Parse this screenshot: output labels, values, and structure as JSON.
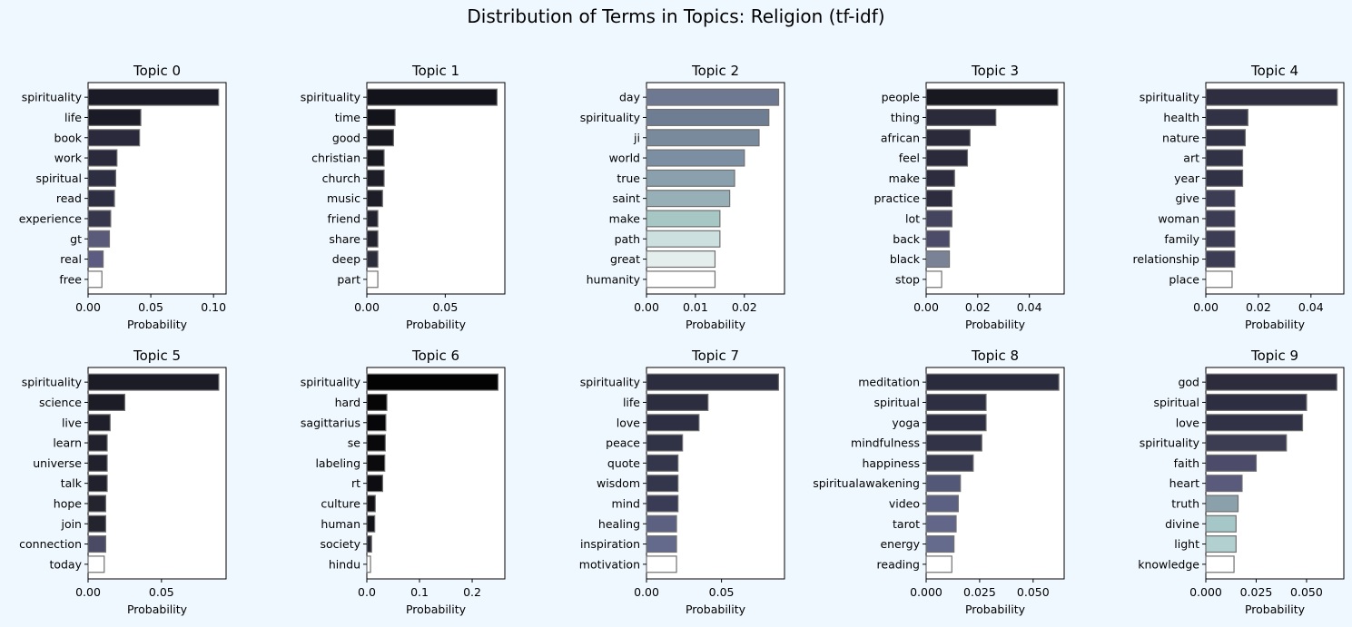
{
  "figure_title": "Distribution of Terms in Topics: Religion (tf-idf)",
  "colors": {
    "background": "#f0f8ff",
    "bar_edge": "#707070",
    "axes_bg": "#ffffff"
  },
  "chart_data": [
    {
      "type": "bar",
      "orientation": "horizontal",
      "title": "Topic 0",
      "xlabel": "Probability",
      "xlim": [
        0,
        0.11
      ],
      "xticks": [
        0,
        0.05,
        0.1
      ],
      "xtick_labels": [
        "0.00",
        "0.05",
        "0.10"
      ],
      "categories": [
        "spirituality",
        "life",
        "book",
        "work",
        "spiritual",
        "read",
        "experience",
        "gt",
        "real",
        "free"
      ],
      "values": [
        0.104,
        0.042,
        0.041,
        0.023,
        0.022,
        0.021,
        0.018,
        0.017,
        0.012,
        0.011
      ],
      "colors": [
        "#1b1b27",
        "#1b1b27",
        "#2a2a3c",
        "#2a2a3c",
        "#2e2e42",
        "#2e2e42",
        "#36364c",
        "#5a5a7a",
        "#5c5c82",
        "#ffffff"
      ]
    },
    {
      "type": "bar",
      "orientation": "horizontal",
      "title": "Topic 1",
      "xlabel": "Probability",
      "xlim": [
        0,
        0.088
      ],
      "xticks": [
        0,
        0.05
      ],
      "xtick_labels": [
        "0.00",
        "0.05"
      ],
      "categories": [
        "spirituality",
        "time",
        "good",
        "christian",
        "church",
        "music",
        "friend",
        "share",
        "deep",
        "part"
      ],
      "values": [
        0.083,
        0.018,
        0.017,
        0.011,
        0.011,
        0.01,
        0.007,
        0.007,
        0.007,
        0.007
      ],
      "colors": [
        "#12131b",
        "#12131b",
        "#171820",
        "#171820",
        "#1c1d26",
        "#1c1d26",
        "#22232e",
        "#22232e",
        "#2c2d3a",
        "#ffffff"
      ]
    },
    {
      "type": "bar",
      "orientation": "horizontal",
      "title": "Topic 2",
      "xlabel": "Probability",
      "xlim": [
        0,
        0.0282
      ],
      "xticks": [
        0,
        0.01,
        0.02
      ],
      "xtick_labels": [
        "0.00",
        "0.01",
        "0.02"
      ],
      "categories": [
        "day",
        "spirituality",
        "ji",
        "world",
        "true",
        "saint",
        "make",
        "path",
        "great",
        "humanity"
      ],
      "values": [
        0.027,
        0.025,
        0.023,
        0.02,
        0.018,
        0.017,
        0.015,
        0.015,
        0.014,
        0.014
      ],
      "colors": [
        "#6f7891",
        "#6f7d93",
        "#788a9c",
        "#7c8ea1",
        "#8aa0ad",
        "#97afb7",
        "#a6c7c4",
        "#cce0df",
        "#e4eeed",
        "#ffffff"
      ]
    },
    {
      "type": "bar",
      "orientation": "horizontal",
      "title": "Topic 3",
      "xlabel": "Probability",
      "xlim": [
        0,
        0.0535
      ],
      "xticks": [
        0,
        0.02,
        0.04
      ],
      "xtick_labels": [
        "0.00",
        "0.02",
        "0.04"
      ],
      "categories": [
        "people",
        "thing",
        "african",
        "feel",
        "make",
        "practice",
        "lot",
        "back",
        "black",
        "stop"
      ],
      "values": [
        0.051,
        0.027,
        0.017,
        0.016,
        0.011,
        0.01,
        0.01,
        0.009,
        0.009,
        0.006
      ],
      "colors": [
        "#171820",
        "#2a2a3a",
        "#2a2a3a",
        "#2a2a3a",
        "#2c2c3e",
        "#2c2c3e",
        "#44445e",
        "#4c4c6a",
        "#7a8296",
        "#ffffff"
      ]
    },
    {
      "type": "bar",
      "orientation": "horizontal",
      "title": "Topic 4",
      "xlabel": "Probability",
      "xlim": [
        0,
        0.0525
      ],
      "xticks": [
        0,
        0.02,
        0.04
      ],
      "xtick_labels": [
        "0.00",
        "0.02",
        "0.04"
      ],
      "categories": [
        "spirituality",
        "health",
        "nature",
        "art",
        "year",
        "give",
        "woman",
        "family",
        "relationship",
        "place"
      ],
      "values": [
        0.05,
        0.016,
        0.015,
        0.014,
        0.014,
        0.011,
        0.011,
        0.011,
        0.011,
        0.01
      ],
      "colors": [
        "#2e2e40",
        "#323246",
        "#323246",
        "#323246",
        "#323246",
        "#3c3c54",
        "#3c3c54",
        "#3c3c54",
        "#3c3c54",
        "#ffffff"
      ]
    },
    {
      "type": "bar",
      "orientation": "horizontal",
      "title": "Topic 5",
      "xlabel": "Probability",
      "xlim": [
        0,
        0.094
      ],
      "xticks": [
        0,
        0.05
      ],
      "xtick_labels": [
        "0.00",
        "0.05"
      ],
      "categories": [
        "spirituality",
        "science",
        "live",
        "learn",
        "universe",
        "talk",
        "hope",
        "join",
        "connection",
        "today"
      ],
      "values": [
        0.089,
        0.025,
        0.015,
        0.013,
        0.013,
        0.013,
        0.012,
        0.012,
        0.012,
        0.011
      ],
      "colors": [
        "#1b1c26",
        "#1b1c26",
        "#1e1f2a",
        "#20212c",
        "#20212c",
        "#20212c",
        "#24242f",
        "#24242f",
        "#4a4a64",
        "#ffffff"
      ]
    },
    {
      "type": "bar",
      "orientation": "horizontal",
      "title": "Topic 6",
      "xlabel": "Probability",
      "xlim": [
        0,
        0.262
      ],
      "xticks": [
        0,
        0.1,
        0.2
      ],
      "xtick_labels": [
        "0.0",
        "0.1",
        "0.2"
      ],
      "categories": [
        "spirituality",
        "hard",
        "sagittarius",
        "se",
        "labeling",
        "rt",
        "culture",
        "human",
        "society",
        "hindu"
      ],
      "values": [
        0.249,
        0.038,
        0.036,
        0.035,
        0.034,
        0.03,
        0.016,
        0.015,
        0.009,
        0.007
      ],
      "colors": [
        "#030303",
        "#060607",
        "#070709",
        "#09090b",
        "#0b0b0e",
        "#0e0e12",
        "#111116",
        "#13131a",
        "#22222c",
        "#ffffff"
      ]
    },
    {
      "type": "bar",
      "orientation": "horizontal",
      "title": "Topic 7",
      "xlabel": "Probability",
      "xlim": [
        0,
        0.092
      ],
      "xticks": [
        0,
        0.05
      ],
      "xtick_labels": [
        "0.00",
        "0.05"
      ],
      "categories": [
        "spirituality",
        "life",
        "love",
        "peace",
        "quote",
        "wisdom",
        "mind",
        "healing",
        "inspiration",
        "motivation"
      ],
      "values": [
        0.088,
        0.041,
        0.035,
        0.024,
        0.021,
        0.021,
        0.021,
        0.02,
        0.02,
        0.02
      ],
      "colors": [
        "#2c2d3e",
        "#2c2d3e",
        "#2e2f42",
        "#303246",
        "#34364c",
        "#34364c",
        "#3a3c56",
        "#5c6182",
        "#646a8c",
        "#ffffff"
      ]
    },
    {
      "type": "bar",
      "orientation": "horizontal",
      "title": "Topic 8",
      "xlabel": "Probability",
      "xlim": [
        0,
        0.0645
      ],
      "xticks": [
        0,
        0.025,
        0.05
      ],
      "xtick_labels": [
        "0.000",
        "0.025",
        "0.050"
      ],
      "categories": [
        "meditation",
        "spiritual",
        "yoga",
        "mindfulness",
        "happiness",
        "spiritualawakening",
        "video",
        "tarot",
        "energy",
        "reading"
      ],
      "values": [
        0.062,
        0.028,
        0.028,
        0.026,
        0.022,
        0.016,
        0.015,
        0.014,
        0.013,
        0.012
      ],
      "colors": [
        "#2a2b3c",
        "#2e2f42",
        "#2e2f42",
        "#323346",
        "#383a50",
        "#545878",
        "#5c6082",
        "#62678a",
        "#656b8c",
        "#ffffff"
      ]
    },
    {
      "type": "bar",
      "orientation": "horizontal",
      "title": "Topic 9",
      "xlabel": "Probability",
      "xlim": [
        0,
        0.0685
      ],
      "xticks": [
        0,
        0.025,
        0.05
      ],
      "xtick_labels": [
        "0.000",
        "0.025",
        "0.050"
      ],
      "categories": [
        "god",
        "spiritual",
        "love",
        "spirituality",
        "faith",
        "heart",
        "truth",
        "divine",
        "light",
        "knowledge"
      ],
      "values": [
        0.065,
        0.05,
        0.048,
        0.04,
        0.025,
        0.018,
        0.016,
        0.015,
        0.015,
        0.014
      ],
      "colors": [
        "#2c2c3c",
        "#2e2e42",
        "#323246",
        "#3c3c52",
        "#4c4c6a",
        "#5a5a7c",
        "#8aa0aa",
        "#a6c7c7",
        "#b2d0d0",
        "#ffffff"
      ]
    }
  ]
}
